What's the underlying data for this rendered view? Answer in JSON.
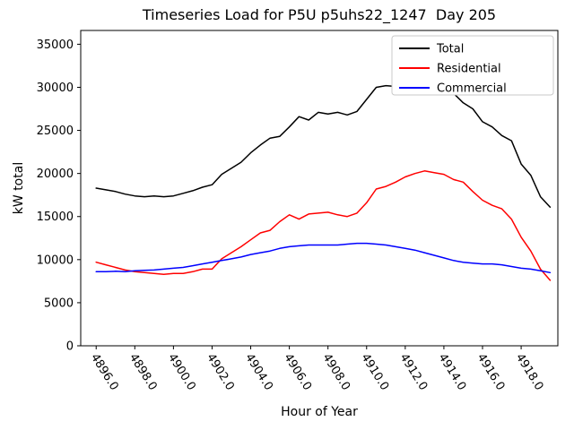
{
  "chart_data": {
    "type": "line",
    "title": "Timeseries Load for P5U p5uhs22_1247  Day 205",
    "xlabel": "Hour of Year",
    "ylabel": "kW total",
    "legend_position": "top-right",
    "grid": false,
    "xlim": [
      4895.2,
      4919.9
    ],
    "ylim": [
      0,
      36600
    ],
    "x": [
      4896.0,
      4896.5,
      4897.0,
      4897.5,
      4898.0,
      4898.5,
      4899.0,
      4899.5,
      4900.0,
      4900.5,
      4901.0,
      4901.5,
      4902.0,
      4902.5,
      4903.0,
      4903.5,
      4904.0,
      4904.5,
      4905.0,
      4905.5,
      4906.0,
      4906.5,
      4907.0,
      4907.5,
      4908.0,
      4908.5,
      4909.0,
      4909.5,
      4910.0,
      4910.5,
      4911.0,
      4911.5,
      4912.0,
      4912.5,
      4913.0,
      4913.5,
      4914.0,
      4914.5,
      4915.0,
      4915.5,
      4916.0,
      4916.5,
      4917.0,
      4917.5,
      4918.0,
      4918.5,
      4919.0,
      4919.5
    ],
    "series": [
      {
        "name": "Total",
        "color": "#000000",
        "values": [
          18300,
          18100,
          17900,
          17600,
          17400,
          17300,
          17400,
          17300,
          17400,
          17700,
          18000,
          18400,
          18700,
          19900,
          20600,
          21300,
          22400,
          23300,
          24100,
          24300,
          25400,
          26600,
          26200,
          27100,
          26900,
          27100,
          26800,
          27200,
          28600,
          30000,
          30200,
          30100,
          30400,
          31300,
          31400,
          30900,
          29800,
          29300,
          28200,
          27500,
          26000,
          25400,
          24400,
          23800,
          21100,
          19800,
          17300,
          16100
        ]
      },
      {
        "name": "Residential",
        "color": "#ff0000",
        "values": [
          9700,
          9400,
          9100,
          8800,
          8600,
          8500,
          8400,
          8300,
          8400,
          8400,
          8600,
          8900,
          8900,
          10100,
          10800,
          11500,
          12300,
          13100,
          13400,
          14400,
          15200,
          14700,
          15300,
          15400,
          15500,
          15200,
          15000,
          15400,
          16600,
          18200,
          18500,
          19000,
          19600,
          20000,
          20300,
          20100,
          19900,
          19300,
          19000,
          17900,
          16900,
          16300,
          15900,
          14700,
          12600,
          11000,
          8900,
          7600
        ]
      },
      {
        "name": "Commercial",
        "color": "#0000ff",
        "values": [
          8600,
          8600,
          8650,
          8600,
          8700,
          8750,
          8800,
          8900,
          9000,
          9100,
          9300,
          9500,
          9700,
          9900,
          10100,
          10300,
          10600,
          10800,
          11000,
          11300,
          11500,
          11600,
          11700,
          11700,
          11700,
          11700,
          11800,
          11900,
          11900,
          11800,
          11700,
          11500,
          11300,
          11100,
          10800,
          10500,
          10200,
          9900,
          9700,
          9600,
          9500,
          9500,
          9400,
          9200,
          9000,
          8900,
          8700,
          8500
        ]
      }
    ],
    "xticks": [
      {
        "value": 4896,
        "label": "4896.0"
      },
      {
        "value": 4898,
        "label": "4898.0"
      },
      {
        "value": 4900,
        "label": "4900.0"
      },
      {
        "value": 4902,
        "label": "4902.0"
      },
      {
        "value": 4904,
        "label": "4904.0"
      },
      {
        "value": 4906,
        "label": "4906.0"
      },
      {
        "value": 4908,
        "label": "4908.0"
      },
      {
        "value": 4910,
        "label": "4910.0"
      },
      {
        "value": 4912,
        "label": "4912.0"
      },
      {
        "value": 4914,
        "label": "4914.0"
      },
      {
        "value": 4916,
        "label": "4916.0"
      },
      {
        "value": 4918,
        "label": "4918.0"
      }
    ],
    "yticks": [
      {
        "value": 0,
        "label": "0"
      },
      {
        "value": 5000,
        "label": "5000"
      },
      {
        "value": 10000,
        "label": "10000"
      },
      {
        "value": 15000,
        "label": "15000"
      },
      {
        "value": 20000,
        "label": "20000"
      },
      {
        "value": 25000,
        "label": "25000"
      },
      {
        "value": 30000,
        "label": "30000"
      },
      {
        "value": 35000,
        "label": "35000"
      }
    ]
  }
}
